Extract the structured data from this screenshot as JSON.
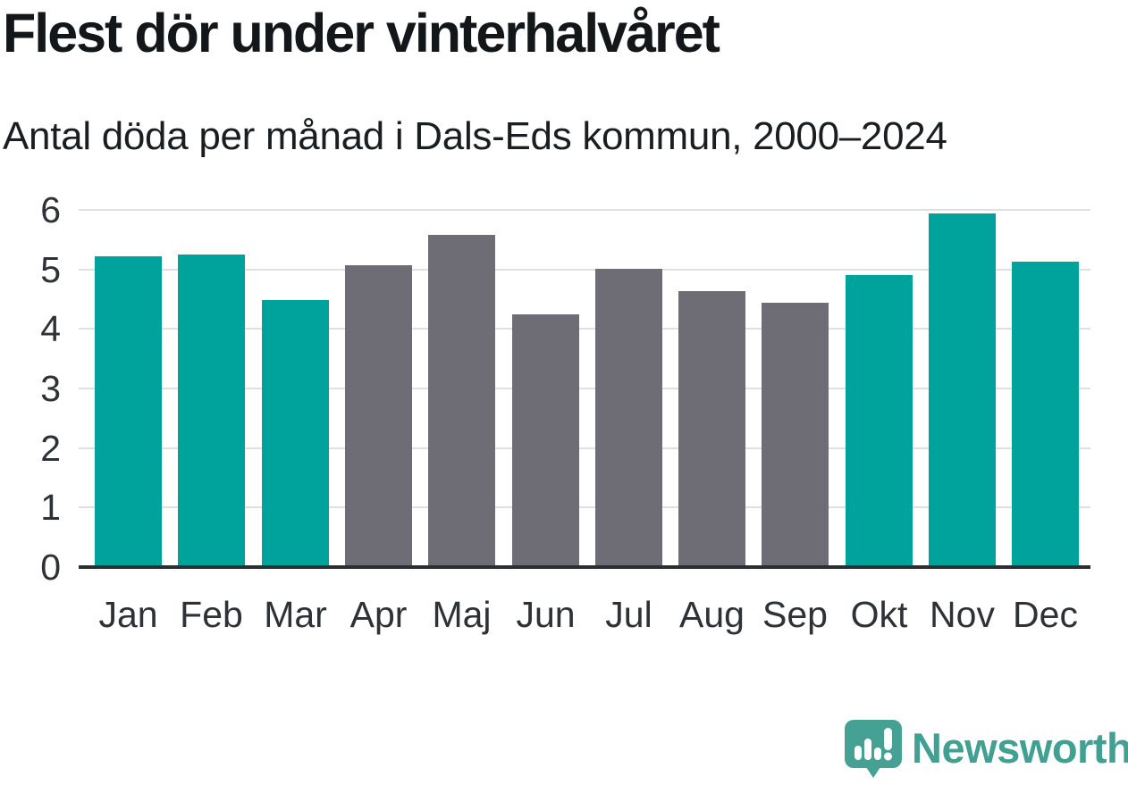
{
  "header": {
    "title": "Flest dör under vinterhalvåret",
    "subtitle": "Antal döda per månad i Dals-Eds kommun, 2000–2024"
  },
  "chart_data": {
    "type": "bar",
    "title": "Flest dör under vinterhalvåret",
    "subtitle": "Antal döda per månad i Dals-Eds kommun, 2000–2024",
    "categories": [
      "Jan",
      "Feb",
      "Mar",
      "Apr",
      "Maj",
      "Jun",
      "Jul",
      "Aug",
      "Sep",
      "Okt",
      "Nov",
      "Dec"
    ],
    "values": [
      5.22,
      5.25,
      4.49,
      5.07,
      5.57,
      4.24,
      5.0,
      4.64,
      4.44,
      4.9,
      5.93,
      5.13
    ],
    "highlight_winter": [
      true,
      true,
      true,
      false,
      false,
      false,
      false,
      false,
      false,
      true,
      true,
      true
    ],
    "xlabel": "",
    "ylabel": "",
    "ylim": [
      0,
      6
    ],
    "yticks": [
      0,
      1,
      2,
      3,
      4,
      5,
      6
    ],
    "grid": "horizontal",
    "legend": "none"
  },
  "colors": {
    "winter_bar": "#00a39b",
    "summer_bar": "#6e6d75",
    "gridline": "#e0e0e0",
    "axis": "#2b2f33",
    "tick_text": "#2e3236",
    "logo_teal": "#46a195"
  },
  "footer": {
    "brand": "Newsworthy",
    "logo_icon": "newsworthy-speech-bubble-bar-chart-icon"
  }
}
